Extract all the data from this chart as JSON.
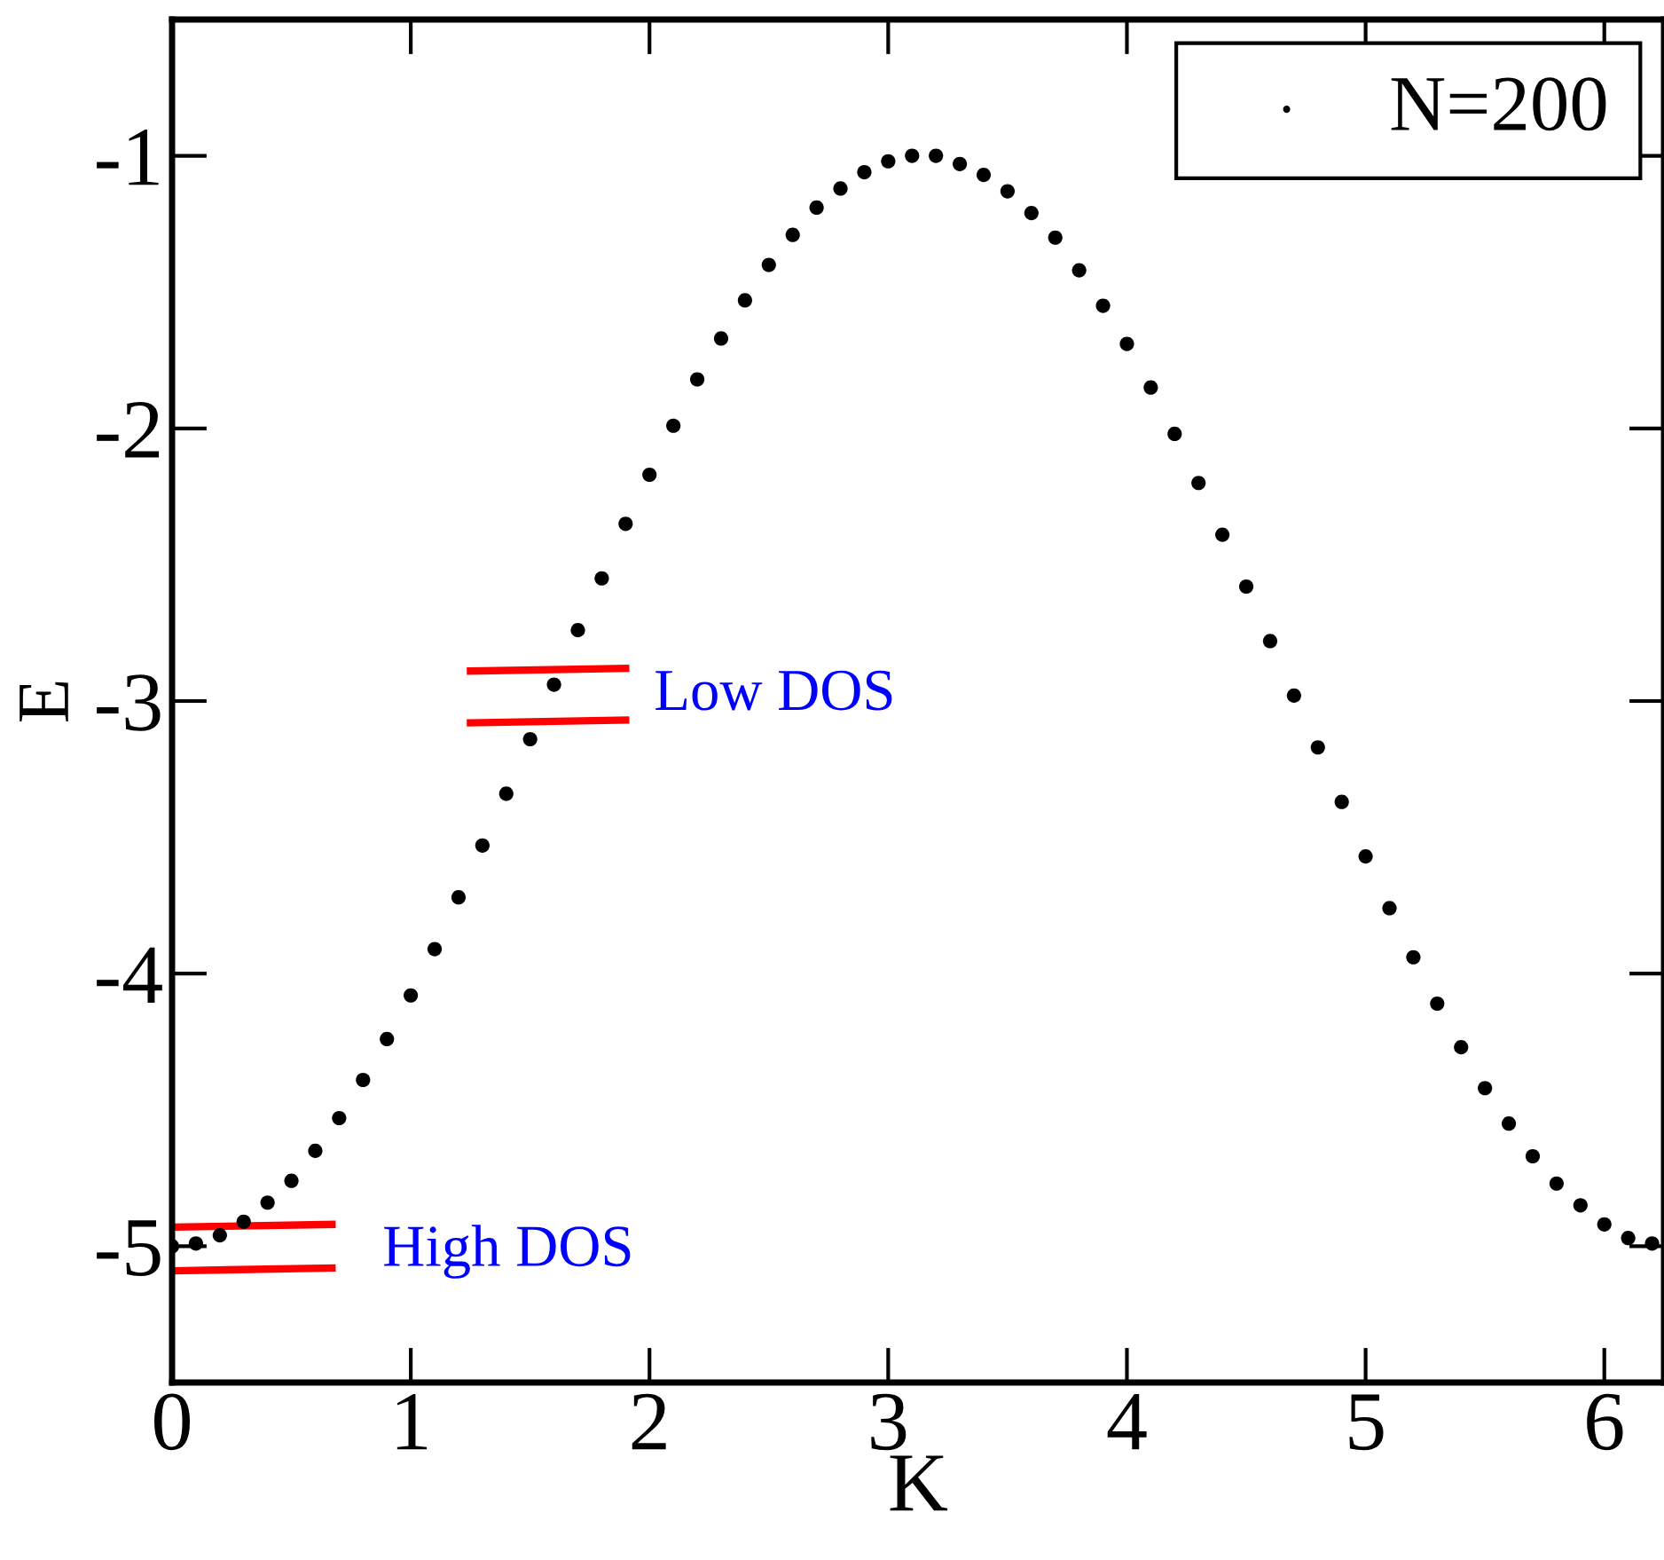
{
  "chart_data": {
    "type": "scatter",
    "xlabel": "K",
    "ylabel": "E",
    "xlim": [
      0,
      6.25
    ],
    "ylim": [
      -5.5,
      -0.5
    ],
    "xticks": [
      0,
      1,
      2,
      3,
      4,
      5,
      6
    ],
    "yticks": [
      -5,
      -4,
      -3,
      -2,
      -1
    ],
    "marker": "circle",
    "legend": "top right",
    "grid": false,
    "series": [
      {
        "name": "N=200",
        "color": "#000000",
        "x": [
          0.0,
          0.1,
          0.2,
          0.3,
          0.4,
          0.5,
          0.6,
          0.7,
          0.8,
          0.9,
          1.0,
          1.1,
          1.2,
          1.3,
          1.4,
          1.5,
          1.6,
          1.7,
          1.8,
          1.9,
          2.0,
          2.1,
          2.2,
          2.3,
          2.4,
          2.5,
          2.6,
          2.7,
          2.8,
          2.9,
          3.0,
          3.1,
          3.2,
          3.3,
          3.4,
          3.5,
          3.6,
          3.7,
          3.8,
          3.9,
          4.0,
          4.1,
          4.2,
          4.3,
          4.4,
          4.5,
          4.6,
          4.7,
          4.8,
          4.9,
          5.0,
          5.1,
          5.2,
          5.3,
          5.4,
          5.5,
          5.6,
          5.7,
          5.8,
          5.9,
          6.0,
          6.1,
          6.2
        ],
        "values": [
          -5.0,
          -4.99,
          -4.96,
          -4.91,
          -4.84,
          -4.76,
          -4.65,
          -4.53,
          -4.39,
          -4.24,
          -4.08,
          -3.91,
          -3.72,
          -3.53,
          -3.34,
          -3.14,
          -2.94,
          -2.74,
          -2.55,
          -2.35,
          -2.17,
          -1.99,
          -1.82,
          -1.67,
          -1.53,
          -1.4,
          -1.29,
          -1.19,
          -1.12,
          -1.06,
          -1.02,
          -1.0,
          -1.0,
          -1.03,
          -1.07,
          -1.13,
          -1.21,
          -1.3,
          -1.42,
          -1.55,
          -1.69,
          -1.85,
          -2.02,
          -2.2,
          -2.39,
          -2.58,
          -2.78,
          -2.98,
          -3.17,
          -3.37,
          -3.57,
          -3.76,
          -3.94,
          -4.11,
          -4.27,
          -4.42,
          -4.55,
          -4.67,
          -4.77,
          -4.85,
          -4.92,
          -4.97,
          -4.99
        ]
      },
      {
        "type": "line",
        "color": "#ff0000",
        "marker": "none",
        "x": [
          0.0,
          0.67
        ],
        "values": [
          -4.93,
          -4.92
        ]
      },
      {
        "type": "line",
        "color": "#ff0000",
        "marker": "none",
        "x": [
          0.0,
          0.67
        ],
        "values": [
          -5.09,
          -5.08
        ]
      },
      {
        "type": "line",
        "color": "#ff0000",
        "marker": "none",
        "x": [
          1.25,
          1.9
        ],
        "values": [
          -2.89,
          -2.88
        ]
      },
      {
        "type": "line",
        "color": "#ff0000",
        "marker": "none",
        "x": [
          1.25,
          1.9
        ],
        "values": [
          -3.08,
          -3.07
        ]
      }
    ],
    "annotations": [
      "Low DOS",
      "High DOS"
    ]
  }
}
